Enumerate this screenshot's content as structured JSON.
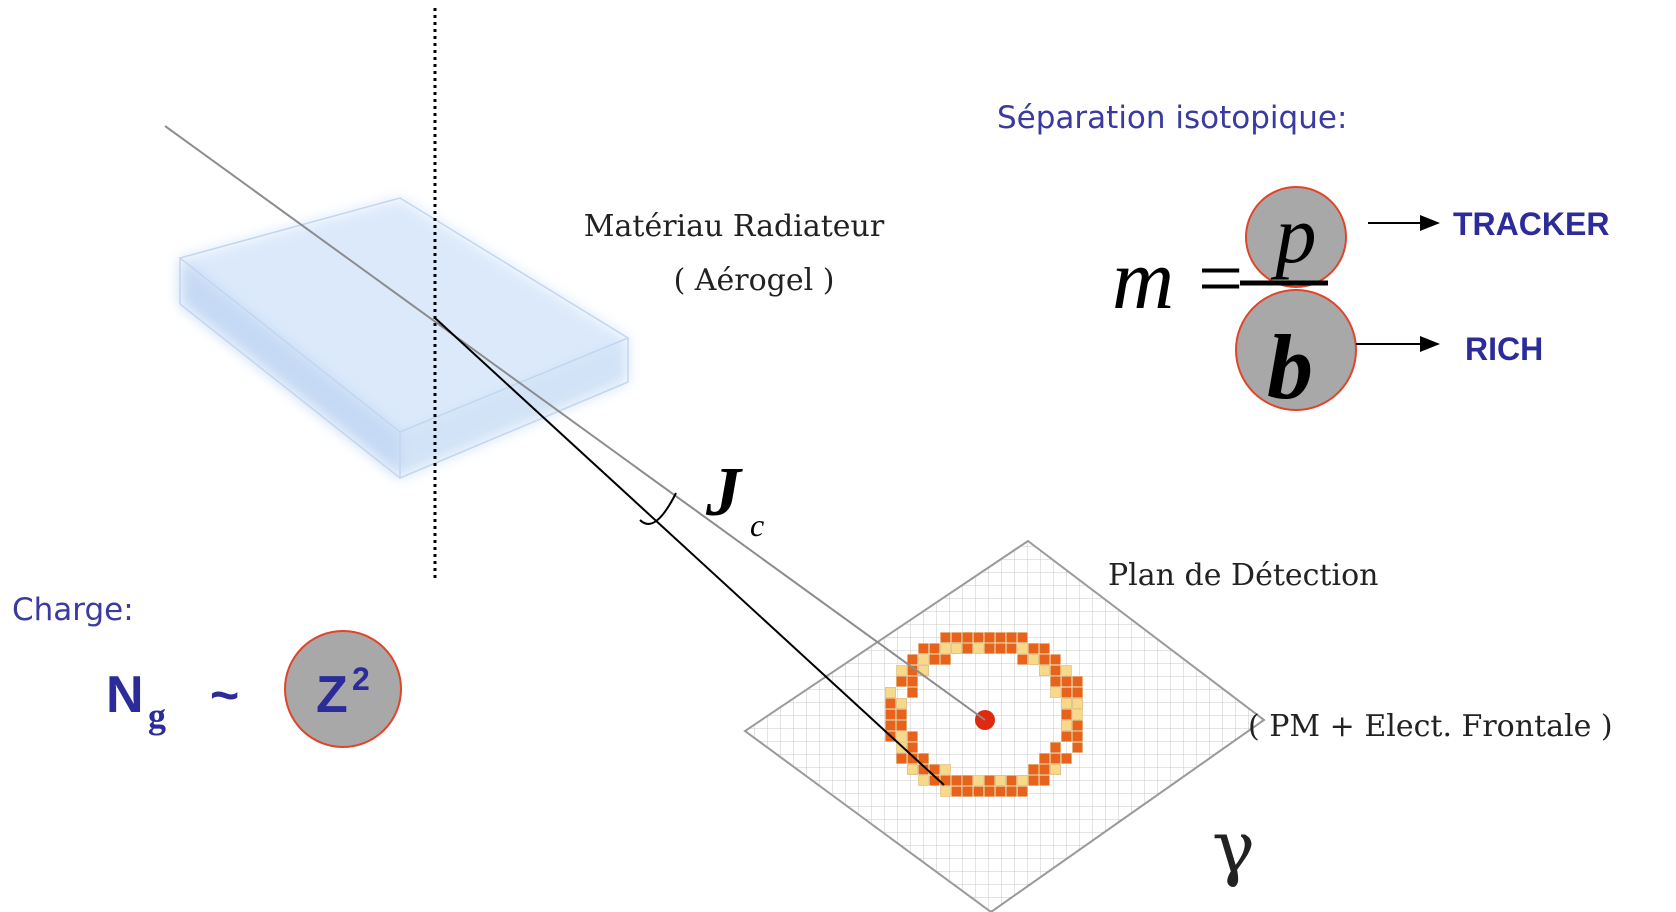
{
  "isotope": {
    "title": "Séparation isotopique:",
    "m": "m",
    "equals": "=",
    "p": "p",
    "b": "b",
    "tracker": "TRACKER",
    "rich": "RICH"
  },
  "radiator": {
    "line1": "Matériau Radiateur",
    "line2": "( Aérogel )"
  },
  "angle": {
    "symbol": "J",
    "subscript": "c"
  },
  "detection": {
    "title": "Plan de Détection",
    "subtitle": "( PM + Elect. Frontale )",
    "gamma": "γ"
  },
  "charge": {
    "title": "Charge:",
    "n": "N",
    "n_sub": "g",
    "tilde": "~",
    "z": "Z",
    "z_exp": "2"
  },
  "colors": {
    "label_blue": "#3a3aa0",
    "circle_fill": "#a8a8a8",
    "circle_stroke": "#e0442a",
    "ring_orange": "#e8621c",
    "ring_yellow": "#f8d98a",
    "center_dot": "#e02a10"
  }
}
